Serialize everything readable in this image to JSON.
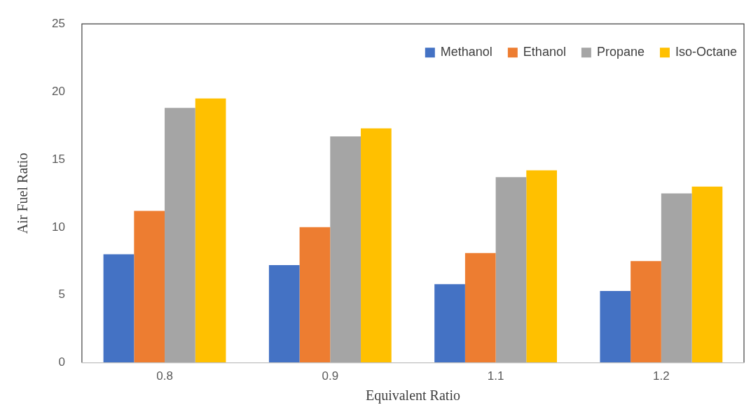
{
  "chart_data": {
    "type": "bar",
    "xlabel": "Equivalent Ratio",
    "ylabel": "Air Fuel Ratio",
    "categories": [
      "0.8",
      "0.9",
      "1.1",
      "1.2"
    ],
    "series": [
      {
        "name": "Methanol",
        "color": "#4472c4",
        "values": [
          8.0,
          7.2,
          5.8,
          5.3
        ]
      },
      {
        "name": "Ethanol",
        "color": "#ed7d31",
        "values": [
          11.2,
          10.0,
          8.1,
          7.5
        ]
      },
      {
        "name": "Propane",
        "color": "#a5a5a5",
        "values": [
          18.8,
          16.7,
          13.7,
          12.5
        ]
      },
      {
        "name": "Iso-Octane",
        "color": "#ffc000",
        "values": [
          19.5,
          17.3,
          14.2,
          13.0
        ]
      }
    ],
    "ylim": [
      0,
      25
    ],
    "yticks": [
      0,
      5,
      10,
      15,
      20,
      25
    ],
    "grid": false,
    "legend": "top right"
  }
}
